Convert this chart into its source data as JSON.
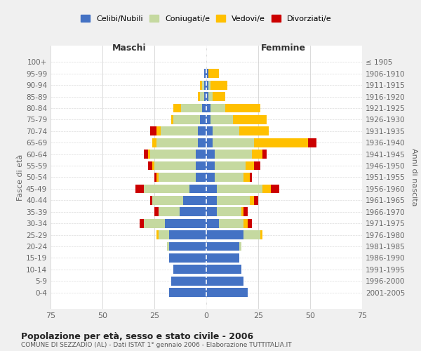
{
  "age_groups": [
    "0-4",
    "5-9",
    "10-14",
    "15-19",
    "20-24",
    "25-29",
    "30-34",
    "35-39",
    "40-44",
    "45-49",
    "50-54",
    "55-59",
    "60-64",
    "65-69",
    "70-74",
    "75-79",
    "80-84",
    "85-89",
    "90-94",
    "95-99",
    "100+"
  ],
  "birth_years": [
    "2001-2005",
    "1996-2000",
    "1991-1995",
    "1986-1990",
    "1981-1985",
    "1976-1980",
    "1971-1975",
    "1966-1970",
    "1961-1965",
    "1956-1960",
    "1951-1955",
    "1946-1950",
    "1941-1945",
    "1936-1940",
    "1931-1935",
    "1926-1930",
    "1921-1925",
    "1916-1920",
    "1911-1915",
    "1906-1910",
    "≤ 1905"
  ],
  "maschi": {
    "celibi": [
      18,
      17,
      16,
      18,
      18,
      18,
      20,
      13,
      11,
      8,
      5,
      5,
      5,
      4,
      4,
      3,
      2,
      1,
      1,
      1,
      0
    ],
    "coniugati": [
      0,
      0,
      0,
      0,
      1,
      5,
      10,
      10,
      15,
      22,
      18,
      20,
      22,
      20,
      18,
      13,
      10,
      2,
      1,
      0,
      0
    ],
    "vedovi": [
      0,
      0,
      0,
      0,
      0,
      1,
      0,
      0,
      0,
      0,
      1,
      1,
      1,
      2,
      2,
      1,
      4,
      1,
      1,
      0,
      0
    ],
    "divorziati": [
      0,
      0,
      0,
      0,
      0,
      0,
      2,
      2,
      1,
      4,
      1,
      2,
      2,
      0,
      3,
      0,
      0,
      0,
      0,
      0,
      0
    ]
  },
  "femmine": {
    "nubili": [
      20,
      18,
      17,
      16,
      16,
      18,
      6,
      5,
      5,
      5,
      4,
      4,
      4,
      3,
      3,
      2,
      2,
      1,
      1,
      1,
      0
    ],
    "coniugate": [
      0,
      0,
      0,
      0,
      1,
      8,
      12,
      12,
      16,
      22,
      14,
      15,
      18,
      20,
      13,
      11,
      7,
      2,
      1,
      0,
      0
    ],
    "vedove": [
      0,
      0,
      0,
      0,
      0,
      1,
      2,
      1,
      2,
      4,
      3,
      4,
      5,
      26,
      14,
      16,
      17,
      6,
      8,
      5,
      0
    ],
    "divorziate": [
      0,
      0,
      0,
      0,
      0,
      0,
      2,
      2,
      2,
      4,
      1,
      3,
      2,
      4,
      0,
      0,
      0,
      0,
      0,
      0,
      0
    ]
  },
  "colors": {
    "celibi": "#4472c4",
    "coniugati": "#c5d9a0",
    "vedovi": "#ffc000",
    "divorziati": "#cc0000"
  },
  "xlim": 75,
  "title": "Popolazione per età, sesso e stato civile - 2006",
  "subtitle": "COMUNE DI SEZZADIO (AL) - Dati ISTAT 1° gennaio 2006 - Elaborazione TUTTITALIA.IT",
  "legend_labels": [
    "Celibi/Nubili",
    "Coniugati/e",
    "Vedovi/e",
    "Divorziati/e"
  ],
  "maschi_label": "Maschi",
  "femmine_label": "Femmine",
  "fasce_label": "Fasce di età",
  "anni_label": "Anni di nascita",
  "bg_color": "#f0f0f0",
  "plot_bg": "#ffffff"
}
